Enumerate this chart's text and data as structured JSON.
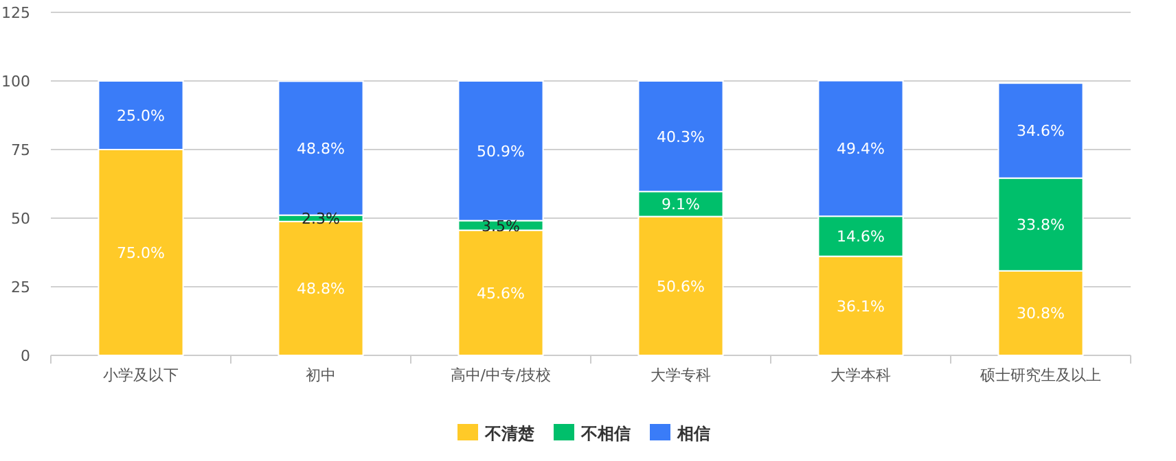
{
  "chart_data": {
    "type": "bar",
    "stacked": true,
    "categories": [
      "小学及以下",
      "初中",
      "高中/中专/技校",
      "大学专科",
      "大学本科",
      "硕士研究生及以上"
    ],
    "series": [
      {
        "name": "不清楚",
        "color": "#ffca28",
        "values": [
          75.0,
          48.8,
          45.6,
          50.6,
          36.1,
          30.8
        ],
        "value_labels": [
          "75.0%",
          "48.8%",
          "45.6%",
          "50.6%",
          "36.1%",
          "30.8%"
        ]
      },
      {
        "name": "不相信",
        "color": "#00bf6b",
        "values": [
          null,
          2.3,
          3.5,
          9.1,
          14.6,
          33.8
        ],
        "value_labels": [
          null,
          "2.3%",
          "3.5%",
          "9.1%",
          "14.6%",
          "33.8%"
        ]
      },
      {
        "name": "相信",
        "color": "#3a7cf8",
        "values": [
          25.0,
          48.8,
          50.9,
          40.3,
          49.4,
          34.6
        ],
        "value_labels": [
          "25.0%",
          "48.8%",
          "50.9%",
          "40.3%",
          "49.4%",
          "34.6%"
        ]
      }
    ],
    "ylim": [
      0,
      125
    ],
    "yticks": [
      0,
      25,
      50,
      75,
      100,
      125
    ],
    "grid": "y",
    "legend": "bottom"
  }
}
